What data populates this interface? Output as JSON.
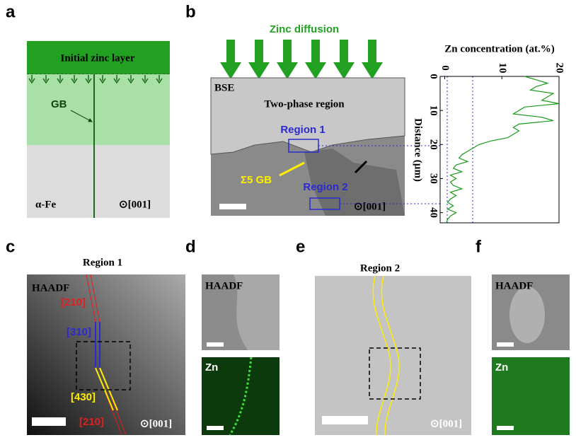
{
  "panels": {
    "a": {
      "label": "a",
      "layer": "Initial zinc layer",
      "gb": "GB",
      "phase": "α-Fe",
      "orientation": "⊙[001]"
    },
    "b": {
      "label": "b",
      "title": "Zinc diffusion",
      "mode": "BSE",
      "region": "Two-phase region",
      "region1": "Region 1",
      "region2": "Region 2",
      "gb": "Σ5 GB",
      "orientation": "⊙[001]"
    },
    "c": {
      "label": "c",
      "title": "Region 1",
      "mode": "HAADF",
      "plane1": "[210]",
      "plane2": "[310]",
      "plane3": "[430]",
      "plane4": "[210]",
      "orientation": "⊙[001]"
    },
    "d": {
      "label": "d",
      "mode": "HAADF",
      "element": "Zn"
    },
    "e": {
      "label": "e",
      "title": "Region 2",
      "orientation": "⊙[001]"
    },
    "f": {
      "label": "f",
      "mode": "HAADF",
      "element": "Zn"
    }
  },
  "chart_data": {
    "type": "line",
    "title": "Zn concentration (at.%)",
    "y_label": "Distance (µm)",
    "color": "#1a9a1a",
    "xlim": [
      -0.8,
      20
    ],
    "xticks": [
      0,
      10,
      20
    ],
    "ylim": [
      0,
      43
    ],
    "yticks": [
      0,
      10,
      20,
      30,
      40
    ],
    "depths": [
      0,
      1,
      2,
      3,
      4,
      5,
      6,
      7,
      8,
      9,
      10,
      11,
      12,
      13,
      14,
      15,
      16,
      17,
      18,
      19,
      20,
      21,
      22,
      23,
      24,
      25,
      26,
      27,
      28,
      29,
      30,
      31,
      32,
      33,
      34,
      35,
      36,
      37,
      38,
      39,
      40,
      41,
      42,
      43
    ],
    "values": [
      14,
      16,
      18,
      16,
      15,
      19,
      18,
      17,
      20,
      14,
      13,
      12,
      17,
      19,
      13,
      12,
      13,
      12,
      11,
      8,
      6,
      5,
      4,
      3,
      2.5,
      4,
      2,
      1.5,
      3,
      1,
      2,
      1,
      1.5,
      3,
      1,
      2,
      1,
      0.5,
      1.5,
      0.5,
      2,
      1,
      0.5,
      0.3
    ]
  }
}
